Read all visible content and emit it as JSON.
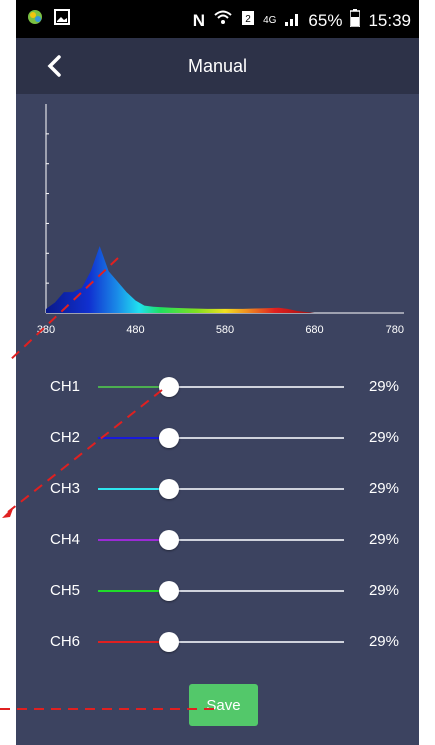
{
  "status_bar": {
    "left_icons": [
      "app-notification-icon",
      "image-notification-icon"
    ],
    "nfc": "N",
    "signal_text": "4G",
    "battery": "65%",
    "time": "15:39"
  },
  "header": {
    "title": "Manual",
    "back_icon": "back-arrow-icon"
  },
  "chart_data": {
    "type": "area",
    "x_ticks": [
      "380",
      "480",
      "580",
      "680",
      "780"
    ],
    "xlim": [
      380,
      780
    ],
    "ylim": [
      0,
      1
    ],
    "grid": false,
    "x": [
      380,
      390,
      400,
      410,
      420,
      430,
      440,
      450,
      460,
      470,
      480,
      490,
      500,
      520,
      540,
      560,
      580,
      600,
      620,
      640,
      650,
      660,
      670,
      680,
      700,
      740,
      780
    ],
    "y": [
      0.02,
      0.05,
      0.1,
      0.1,
      0.12,
      0.2,
      0.32,
      0.2,
      0.15,
      0.1,
      0.06,
      0.035,
      0.03,
      0.025,
      0.022,
      0.02,
      0.02,
      0.02,
      0.022,
      0.025,
      0.02,
      0.01,
      0.005,
      0.0,
      0.0,
      0.0,
      0.0
    ]
  },
  "channels": [
    {
      "label": "CH1",
      "value": "29%",
      "level": 0.29,
      "color": "#4caf50"
    },
    {
      "label": "CH2",
      "value": "29%",
      "level": 0.29,
      "color": "#1a1adb"
    },
    {
      "label": "CH3",
      "value": "29%",
      "level": 0.29,
      "color": "#2ee6ef"
    },
    {
      "label": "CH4",
      "value": "29%",
      "level": 0.29,
      "color": "#9b2bd6"
    },
    {
      "label": "CH5",
      "value": "29%",
      "level": 0.29,
      "color": "#1fdc2a"
    },
    {
      "label": "CH6",
      "value": "29%",
      "level": 0.29,
      "color": "#e02020"
    }
  ],
  "save_label": "Save",
  "colors": {
    "background": "#3c4360",
    "nav": "#2d3248",
    "save": "#53c86a",
    "annotation": "#e02020"
  }
}
